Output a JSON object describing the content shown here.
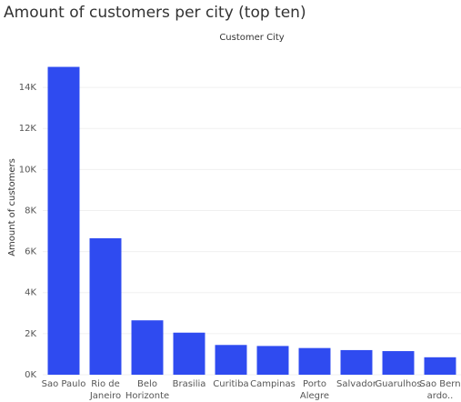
{
  "chart_data": {
    "type": "bar",
    "title": "Amount of customers per city (top ten)",
    "column_header": "Customer City",
    "ylabel": "Amount of customers",
    "xlabel": "",
    "categories": [
      [
        "Sao Paulo"
      ],
      [
        "Rio de",
        "Janeiro"
      ],
      [
        "Belo",
        "Horizonte"
      ],
      [
        "Brasilia"
      ],
      [
        "Curitiba"
      ],
      [
        "Campinas"
      ],
      [
        "Porto",
        "Alegre"
      ],
      [
        "Salvador"
      ],
      [
        "Guarulhos"
      ],
      [
        "Sao Bern",
        "ardo.."
      ]
    ],
    "values": [
      15000,
      6650,
      2650,
      2050,
      1450,
      1400,
      1300,
      1200,
      1150,
      850
    ],
    "ylim": [
      0,
      15600
    ],
    "yticks": [
      0,
      2000,
      4000,
      6000,
      8000,
      10000,
      12000,
      14000
    ],
    "ytick_labels": [
      "0K",
      "2K",
      "4K",
      "6K",
      "8K",
      "10K",
      "12K",
      "14K"
    ],
    "bar_color": "#2f4bf0",
    "grid": true
  }
}
